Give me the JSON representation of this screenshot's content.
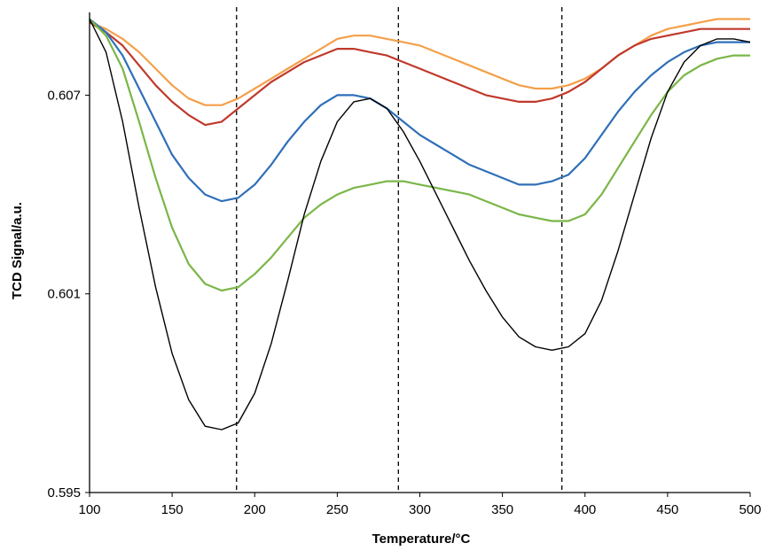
{
  "chart_data": {
    "type": "line",
    "title": "",
    "xlabel": "Temperature/°C",
    "ylabel": "TCD Signal/a.u.",
    "xlim": [
      100,
      500
    ],
    "ylim": [
      0.595,
      0.6095
    ],
    "x_ticks": [
      100,
      150,
      200,
      250,
      300,
      350,
      400,
      450,
      500
    ],
    "x_tick_labels": [
      "100",
      "150",
      "200",
      "250",
      "300",
      "350",
      "400",
      "450",
      "500"
    ],
    "y_ticks": [
      0.595,
      0.601,
      0.607
    ],
    "y_tick_labels": [
      "0.595",
      "0.601",
      "0.607"
    ],
    "grid": false,
    "legend": "none",
    "reference_lines_x": [
      189,
      287,
      386
    ],
    "series": [
      {
        "color": "#f4a04a",
        "x": [
          100,
          110,
          120,
          130,
          140,
          150,
          160,
          170,
          180,
          190,
          200,
          210,
          220,
          230,
          240,
          250,
          260,
          270,
          280,
          290,
          300,
          310,
          320,
          330,
          340,
          350,
          360,
          370,
          380,
          390,
          400,
          410,
          420,
          430,
          440,
          450,
          460,
          470,
          480,
          490,
          500
        ],
        "y": [
          0.6092,
          0.609,
          0.6087,
          0.6083,
          0.6078,
          0.6073,
          0.6069,
          0.6067,
          0.6067,
          0.6069,
          0.6072,
          0.6075,
          0.6078,
          0.6081,
          0.6084,
          0.6087,
          0.6088,
          0.6088,
          0.6087,
          0.6086,
          0.6085,
          0.6083,
          0.6081,
          0.6079,
          0.6077,
          0.6075,
          0.6073,
          0.6072,
          0.6072,
          0.6073,
          0.6075,
          0.6078,
          0.6082,
          0.6085,
          0.6088,
          0.609,
          0.6091,
          0.6092,
          0.6093,
          0.6093,
          0.6093
        ]
      },
      {
        "color": "#c0392b",
        "x": [
          100,
          110,
          120,
          130,
          140,
          150,
          160,
          170,
          180,
          190,
          200,
          210,
          220,
          230,
          240,
          250,
          260,
          270,
          280,
          290,
          300,
          310,
          320,
          330,
          340,
          350,
          360,
          370,
          380,
          390,
          400,
          410,
          420,
          430,
          440,
          450,
          460,
          470,
          480,
          490,
          500
        ],
        "y": [
          0.6092,
          0.6089,
          0.6085,
          0.6079,
          0.6073,
          0.6068,
          0.6064,
          0.6061,
          0.6062,
          0.6066,
          0.607,
          0.6074,
          0.6077,
          0.608,
          0.6082,
          0.6084,
          0.6084,
          0.6083,
          0.6082,
          0.608,
          0.6078,
          0.6076,
          0.6074,
          0.6072,
          0.607,
          0.6069,
          0.6068,
          0.6068,
          0.6069,
          0.6071,
          0.6074,
          0.6078,
          0.6082,
          0.6085,
          0.6087,
          0.6088,
          0.6089,
          0.609,
          0.609,
          0.609,
          0.609
        ]
      },
      {
        "color": "#2f6fb8",
        "x": [
          100,
          110,
          120,
          130,
          140,
          150,
          160,
          170,
          180,
          190,
          200,
          210,
          220,
          230,
          240,
          250,
          260,
          270,
          280,
          290,
          300,
          310,
          320,
          330,
          340,
          350,
          360,
          370,
          380,
          390,
          400,
          410,
          420,
          430,
          440,
          450,
          460,
          470,
          480,
          490,
          500
        ],
        "y": [
          0.6093,
          0.6089,
          0.6082,
          0.6072,
          0.6062,
          0.6052,
          0.6045,
          0.604,
          0.6038,
          0.6039,
          0.6043,
          0.6049,
          0.6056,
          0.6062,
          0.6067,
          0.607,
          0.607,
          0.6069,
          0.6066,
          0.6062,
          0.6058,
          0.6055,
          0.6052,
          0.6049,
          0.6047,
          0.6045,
          0.6043,
          0.6043,
          0.6044,
          0.6046,
          0.6051,
          0.6058,
          0.6065,
          0.6071,
          0.6076,
          0.608,
          0.6083,
          0.6085,
          0.6086,
          0.6086,
          0.6086
        ]
      },
      {
        "color": "#7ab648",
        "x": [
          100,
          110,
          120,
          130,
          140,
          150,
          160,
          170,
          180,
          190,
          200,
          210,
          220,
          230,
          240,
          250,
          260,
          270,
          280,
          290,
          300,
          310,
          320,
          330,
          340,
          350,
          360,
          370,
          380,
          390,
          400,
          410,
          420,
          430,
          440,
          450,
          460,
          470,
          480,
          490,
          500
        ],
        "y": [
          0.6093,
          0.6088,
          0.6078,
          0.6062,
          0.6045,
          0.603,
          0.6019,
          0.6013,
          0.6011,
          0.6012,
          0.6016,
          0.6021,
          0.6027,
          0.6033,
          0.6037,
          0.604,
          0.6042,
          0.6043,
          0.6044,
          0.6044,
          0.6043,
          0.6042,
          0.6041,
          0.604,
          0.6038,
          0.6036,
          0.6034,
          0.6033,
          0.6032,
          0.6032,
          0.6034,
          0.604,
          0.6048,
          0.6056,
          0.6064,
          0.6071,
          0.6076,
          0.6079,
          0.6081,
          0.6082,
          0.6082
        ]
      },
      {
        "color": "#000000",
        "x": [
          100,
          110,
          120,
          130,
          140,
          150,
          160,
          170,
          180,
          190,
          200,
          210,
          220,
          230,
          240,
          250,
          260,
          270,
          280,
          290,
          300,
          310,
          320,
          330,
          340,
          350,
          360,
          370,
          380,
          390,
          400,
          410,
          420,
          430,
          440,
          450,
          460,
          470,
          480,
          490,
          500
        ],
        "y": [
          0.6093,
          0.6083,
          0.6062,
          0.6036,
          0.6012,
          0.5992,
          0.5978,
          0.597,
          0.5969,
          0.5971,
          0.598,
          0.5995,
          0.6014,
          0.6034,
          0.605,
          0.6062,
          0.6068,
          0.6069,
          0.6066,
          0.6059,
          0.605,
          0.604,
          0.603,
          0.602,
          0.6011,
          0.6003,
          0.5997,
          0.5994,
          0.5993,
          0.5994,
          0.5998,
          0.6008,
          0.6023,
          0.604,
          0.6057,
          0.6071,
          0.608,
          0.6085,
          0.6087,
          0.6087,
          0.6086
        ]
      }
    ]
  }
}
